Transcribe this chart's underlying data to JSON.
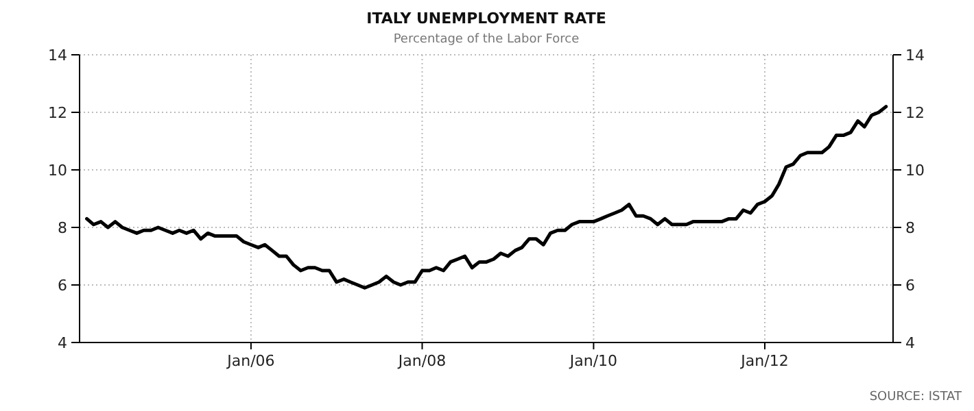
{
  "chart_data": {
    "type": "line",
    "title": "ITALY UNEMPLOYMENT RATE",
    "subtitle": "Percentage of the Labor Force",
    "annotations": [
      "SOURCE: ISTAT"
    ],
    "xlim": [
      "2004-01",
      "2013-07"
    ],
    "xticks": [
      {
        "value": "2006-01",
        "label": "Jan/06"
      },
      {
        "value": "2008-01",
        "label": "Jan/08"
      },
      {
        "value": "2010-01",
        "label": "Jan/10"
      },
      {
        "value": "2012-01",
        "label": "Jan/12"
      }
    ],
    "ylim": [
      4,
      14
    ],
    "yticks": [
      4,
      6,
      8,
      10,
      12,
      14
    ],
    "y2lim": [
      4,
      14
    ],
    "y2ticks": [
      4,
      6,
      8,
      10,
      12,
      14
    ],
    "grid": true,
    "series": [
      {
        "color": "#000000",
        "x": [
          "2004-02",
          "2004-03",
          "2004-04",
          "2004-05",
          "2004-06",
          "2004-07",
          "2004-08",
          "2004-09",
          "2004-10",
          "2004-11",
          "2004-12",
          "2005-01",
          "2005-02",
          "2005-03",
          "2005-04",
          "2005-05",
          "2005-06",
          "2005-07",
          "2005-08",
          "2005-09",
          "2005-10",
          "2005-11",
          "2005-12",
          "2006-01",
          "2006-02",
          "2006-03",
          "2006-04",
          "2006-05",
          "2006-06",
          "2006-07",
          "2006-08",
          "2006-09",
          "2006-10",
          "2006-11",
          "2006-12",
          "2007-01",
          "2007-02",
          "2007-03",
          "2007-04",
          "2007-05",
          "2007-06",
          "2007-07",
          "2007-08",
          "2007-09",
          "2007-10",
          "2007-11",
          "2007-12",
          "2008-01",
          "2008-02",
          "2008-03",
          "2008-04",
          "2008-05",
          "2008-06",
          "2008-07",
          "2008-08",
          "2008-09",
          "2008-10",
          "2008-11",
          "2008-12",
          "2009-01",
          "2009-02",
          "2009-03",
          "2009-04",
          "2009-05",
          "2009-06",
          "2009-07",
          "2009-08",
          "2009-09",
          "2009-10",
          "2009-11",
          "2009-12",
          "2010-01",
          "2010-02",
          "2010-03",
          "2010-04",
          "2010-05",
          "2010-06",
          "2010-07",
          "2010-08",
          "2010-09",
          "2010-10",
          "2010-11",
          "2010-12",
          "2011-01",
          "2011-02",
          "2011-03",
          "2011-04",
          "2011-05",
          "2011-06",
          "2011-07",
          "2011-08",
          "2011-09",
          "2011-10",
          "2011-11",
          "2011-12",
          "2012-01",
          "2012-02",
          "2012-03",
          "2012-04",
          "2012-05",
          "2012-06",
          "2012-07",
          "2012-08",
          "2012-09",
          "2012-10",
          "2012-11",
          "2012-12",
          "2013-01",
          "2013-02",
          "2013-03",
          "2013-04",
          "2013-05",
          "2013-06"
        ],
        "values": [
          8.3,
          8.1,
          8.2,
          8.0,
          8.2,
          8.0,
          7.9,
          7.8,
          7.9,
          7.9,
          8.0,
          7.9,
          7.8,
          7.9,
          7.8,
          7.9,
          7.6,
          7.8,
          7.7,
          7.7,
          7.7,
          7.7,
          7.5,
          7.4,
          7.3,
          7.4,
          7.2,
          7.0,
          7.0,
          6.7,
          6.5,
          6.6,
          6.6,
          6.5,
          6.5,
          6.1,
          6.2,
          6.1,
          6.0,
          5.9,
          6.0,
          6.1,
          6.3,
          6.1,
          6.0,
          6.1,
          6.1,
          6.5,
          6.5,
          6.6,
          6.5,
          6.8,
          6.9,
          7.0,
          6.6,
          6.8,
          6.8,
          6.9,
          7.1,
          7.0,
          7.2,
          7.3,
          7.6,
          7.6,
          7.4,
          7.8,
          7.9,
          7.9,
          8.1,
          8.2,
          8.2,
          8.2,
          8.3,
          8.4,
          8.5,
          8.6,
          8.8,
          8.4,
          8.4,
          8.3,
          8.1,
          8.3,
          8.1,
          8.1,
          8.1,
          8.2,
          8.2,
          8.2,
          8.2,
          8.2,
          8.3,
          8.3,
          8.6,
          8.5,
          8.8,
          8.9,
          9.1,
          9.5,
          10.1,
          10.2,
          10.5,
          10.6,
          10.6,
          10.6,
          10.8,
          11.2,
          11.2,
          11.3,
          11.7,
          11.5,
          11.9,
          12.0,
          12.2
        ]
      }
    ]
  }
}
